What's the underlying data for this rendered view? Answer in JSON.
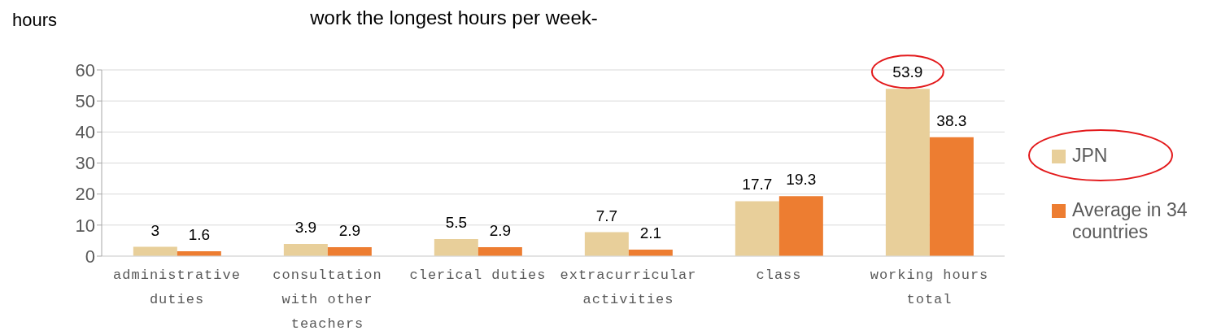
{
  "chart_data": {
    "type": "bar",
    "title": "work the longest hours per week-",
    "ylabel": "hours",
    "categories": [
      "administrative duties",
      "consultation with other teachers",
      "clerical duties",
      "extracurricular activities",
      "class",
      "working hours total"
    ],
    "series": [
      {
        "name": "JPN",
        "color": "#e8cf9a",
        "values": [
          3,
          3.9,
          5.5,
          7.7,
          17.7,
          53.9
        ]
      },
      {
        "name": "Average in 34 countries",
        "color": "#ed7d31",
        "values": [
          1.6,
          2.9,
          2.9,
          2.1,
          19.3,
          38.3
        ]
      }
    ],
    "ylim": [
      0,
      60
    ],
    "yticks": [
      0,
      10,
      20,
      30,
      40,
      50,
      60
    ],
    "grid": "y",
    "legend": "right",
    "data_labels": true
  }
}
